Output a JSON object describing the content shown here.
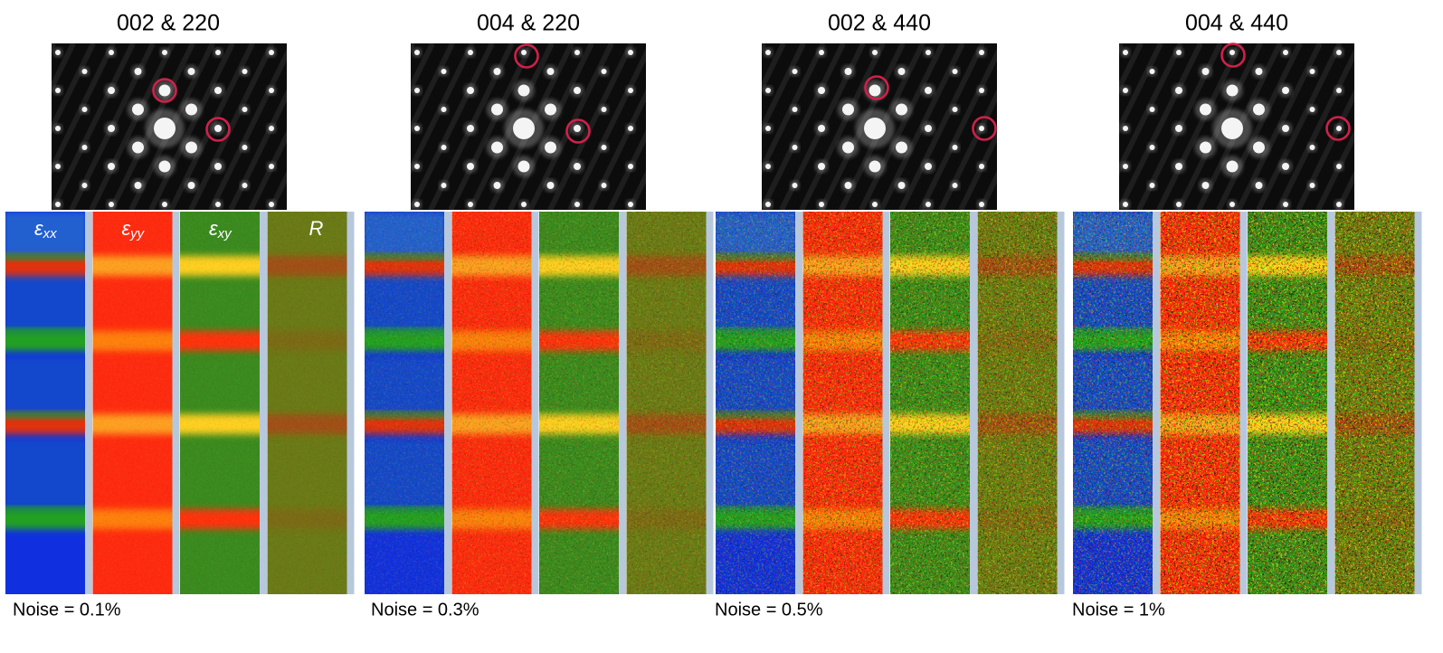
{
  "panels": [
    {
      "title": "002 & 220",
      "noise": "Noise = 0.1%"
    },
    {
      "title": "004 & 220",
      "noise": "Noise = 0.3%"
    },
    {
      "title": "002 & 440",
      "noise": "Noise = 0.5%"
    },
    {
      "title": "004 & 440",
      "noise": "Noise = 1%"
    }
  ],
  "map_labels": [
    {
      "symbol": "ε",
      "subscript": "xx"
    },
    {
      "symbol": "ε",
      "subscript": "yy"
    },
    {
      "symbol": "ε",
      "subscript": "xy"
    },
    {
      "symbol": "R"
    }
  ]
}
